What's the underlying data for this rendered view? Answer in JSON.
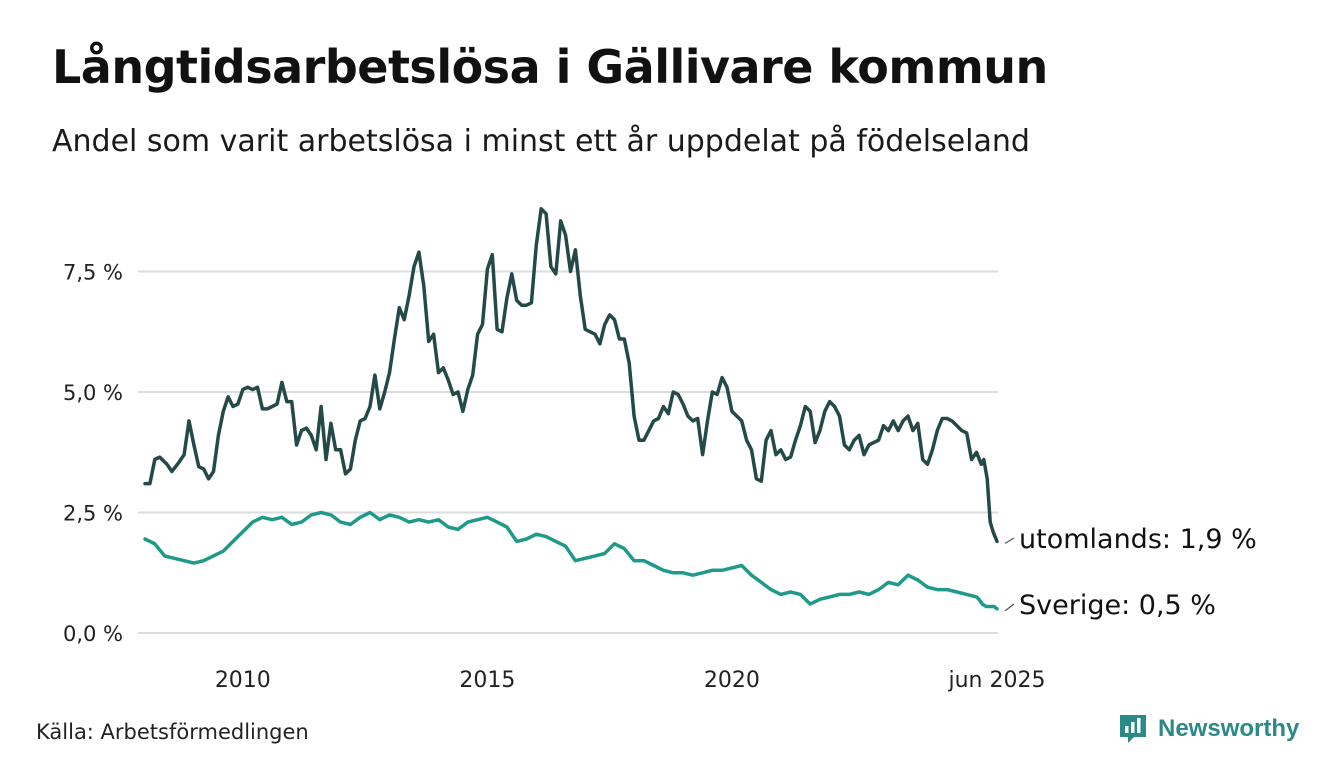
{
  "title": "Långtidsarbetslösa i Gällivare kommun",
  "subtitle": "Andel som varit arbetslösa i minst ett år uppdelat på födelseland",
  "source": "Källa: Arbetsförmedlingen",
  "brand": "Newsworthy",
  "colors": {
    "utomlands": "#234a46",
    "sverige": "#1f9a8a",
    "grid": "#dcdcdc",
    "brand": "#2a8a86"
  },
  "chart_data": {
    "type": "line",
    "x_unit": "decimal year",
    "xlim": [
      2008.0,
      2025.42
    ],
    "ylim": [
      0,
      8.8
    ],
    "yticks": [
      0,
      2.5,
      5.0,
      7.5
    ],
    "ytick_labels": [
      "0,0 %",
      "2,5 %",
      "5,0 %",
      "7,5 %"
    ],
    "xticks": [
      2010,
      2015,
      2020,
      2025.42
    ],
    "xtick_labels": [
      "2010",
      "2015",
      "2020",
      "jun 2025"
    ],
    "grid": true,
    "series": [
      {
        "key": "utomlands",
        "end_label": "utomlands: 1,9 %",
        "points": [
          [
            2008.0,
            3.1
          ],
          [
            2008.1,
            3.1
          ],
          [
            2008.2,
            3.6
          ],
          [
            2008.3,
            3.65
          ],
          [
            2008.45,
            3.5
          ],
          [
            2008.55,
            3.35
          ],
          [
            2008.7,
            3.55
          ],
          [
            2008.8,
            3.7
          ],
          [
            2008.9,
            4.4
          ],
          [
            2009.0,
            3.9
          ],
          [
            2009.1,
            3.45
          ],
          [
            2009.2,
            3.4
          ],
          [
            2009.3,
            3.2
          ],
          [
            2009.4,
            3.35
          ],
          [
            2009.5,
            4.1
          ],
          [
            2009.6,
            4.6
          ],
          [
            2009.7,
            4.9
          ],
          [
            2009.8,
            4.7
          ],
          [
            2009.9,
            4.75
          ],
          [
            2010.0,
            5.05
          ],
          [
            2010.1,
            5.1
          ],
          [
            2010.2,
            5.05
          ],
          [
            2010.3,
            5.1
          ],
          [
            2010.4,
            4.65
          ],
          [
            2010.5,
            4.65
          ],
          [
            2010.6,
            4.7
          ],
          [
            2010.7,
            4.75
          ],
          [
            2010.8,
            5.2
          ],
          [
            2010.9,
            4.8
          ],
          [
            2011.0,
            4.8
          ],
          [
            2011.1,
            3.9
          ],
          [
            2011.2,
            4.2
          ],
          [
            2011.3,
            4.25
          ],
          [
            2011.4,
            4.1
          ],
          [
            2011.5,
            3.8
          ],
          [
            2011.6,
            4.7
          ],
          [
            2011.7,
            3.6
          ],
          [
            2011.8,
            4.35
          ],
          [
            2011.9,
            3.8
          ],
          [
            2012.0,
            3.8
          ],
          [
            2012.1,
            3.3
          ],
          [
            2012.2,
            3.4
          ],
          [
            2012.3,
            4.0
          ],
          [
            2012.4,
            4.4
          ],
          [
            2012.5,
            4.45
          ],
          [
            2012.6,
            4.7
          ],
          [
            2012.7,
            5.35
          ],
          [
            2012.8,
            4.65
          ],
          [
            2012.9,
            5.0
          ],
          [
            2013.0,
            5.4
          ],
          [
            2013.1,
            6.1
          ],
          [
            2013.2,
            6.75
          ],
          [
            2013.3,
            6.5
          ],
          [
            2013.4,
            7.0
          ],
          [
            2013.5,
            7.6
          ],
          [
            2013.6,
            7.9
          ],
          [
            2013.7,
            7.2
          ],
          [
            2013.8,
            6.05
          ],
          [
            2013.9,
            6.2
          ],
          [
            2014.0,
            5.4
          ],
          [
            2014.1,
            5.5
          ],
          [
            2014.2,
            5.25
          ],
          [
            2014.3,
            4.95
          ],
          [
            2014.4,
            5.0
          ],
          [
            2014.5,
            4.6
          ],
          [
            2014.6,
            5.05
          ],
          [
            2014.7,
            5.35
          ],
          [
            2014.8,
            6.2
          ],
          [
            2014.9,
            6.4
          ],
          [
            2015.0,
            7.55
          ],
          [
            2015.1,
            7.85
          ],
          [
            2015.2,
            6.3
          ],
          [
            2015.3,
            6.25
          ],
          [
            2015.4,
            6.95
          ],
          [
            2015.5,
            7.45
          ],
          [
            2015.6,
            6.9
          ],
          [
            2015.7,
            6.8
          ],
          [
            2015.8,
            6.8
          ],
          [
            2015.9,
            6.85
          ],
          [
            2016.0,
            8.05
          ],
          [
            2016.1,
            8.8
          ],
          [
            2016.2,
            8.7
          ],
          [
            2016.3,
            7.6
          ],
          [
            2016.4,
            7.45
          ],
          [
            2016.5,
            8.55
          ],
          [
            2016.6,
            8.25
          ],
          [
            2016.7,
            7.5
          ],
          [
            2016.8,
            7.95
          ],
          [
            2016.9,
            7.0
          ],
          [
            2017.0,
            6.3
          ],
          [
            2017.1,
            6.25
          ],
          [
            2017.2,
            6.2
          ],
          [
            2017.3,
            6.0
          ],
          [
            2017.4,
            6.4
          ],
          [
            2017.5,
            6.6
          ],
          [
            2017.6,
            6.5
          ],
          [
            2017.7,
            6.1
          ],
          [
            2017.8,
            6.1
          ],
          [
            2017.9,
            5.6
          ],
          [
            2018.0,
            4.5
          ],
          [
            2018.1,
            4.0
          ],
          [
            2018.2,
            4.0
          ],
          [
            2018.3,
            4.2
          ],
          [
            2018.4,
            4.4
          ],
          [
            2018.5,
            4.45
          ],
          [
            2018.6,
            4.7
          ],
          [
            2018.7,
            4.55
          ],
          [
            2018.8,
            5.0
          ],
          [
            2018.9,
            4.95
          ],
          [
            2019.0,
            4.75
          ],
          [
            2019.1,
            4.5
          ],
          [
            2019.2,
            4.4
          ],
          [
            2019.3,
            4.45
          ],
          [
            2019.4,
            3.7
          ],
          [
            2019.5,
            4.4
          ],
          [
            2019.6,
            5.0
          ],
          [
            2019.7,
            4.95
          ],
          [
            2019.8,
            5.3
          ],
          [
            2019.9,
            5.1
          ],
          [
            2020.0,
            4.6
          ],
          [
            2020.1,
            4.5
          ],
          [
            2020.2,
            4.4
          ],
          [
            2020.3,
            4.0
          ],
          [
            2020.4,
            3.8
          ],
          [
            2020.5,
            3.2
          ],
          [
            2020.6,
            3.15
          ],
          [
            2020.7,
            4.0
          ],
          [
            2020.8,
            4.2
          ],
          [
            2020.9,
            3.7
          ],
          [
            2021.0,
            3.8
          ],
          [
            2021.1,
            3.6
          ],
          [
            2021.2,
            3.65
          ],
          [
            2021.3,
            4.0
          ],
          [
            2021.4,
            4.3
          ],
          [
            2021.5,
            4.7
          ],
          [
            2021.6,
            4.6
          ],
          [
            2021.7,
            3.95
          ],
          [
            2021.8,
            4.2
          ],
          [
            2021.9,
            4.6
          ],
          [
            2022.0,
            4.8
          ],
          [
            2022.1,
            4.7
          ],
          [
            2022.2,
            4.5
          ],
          [
            2022.3,
            3.9
          ],
          [
            2022.4,
            3.8
          ],
          [
            2022.5,
            4.0
          ],
          [
            2022.6,
            4.1
          ],
          [
            2022.7,
            3.7
          ],
          [
            2022.8,
            3.9
          ],
          [
            2022.9,
            3.95
          ],
          [
            2023.0,
            4.0
          ],
          [
            2023.1,
            4.3
          ],
          [
            2023.2,
            4.2
          ],
          [
            2023.3,
            4.4
          ],
          [
            2023.4,
            4.2
          ],
          [
            2023.5,
            4.4
          ],
          [
            2023.6,
            4.5
          ],
          [
            2023.7,
            4.2
          ],
          [
            2023.8,
            4.35
          ],
          [
            2023.9,
            3.6
          ],
          [
            2024.0,
            3.5
          ],
          [
            2024.1,
            3.8
          ],
          [
            2024.2,
            4.2
          ],
          [
            2024.3,
            4.45
          ],
          [
            2024.4,
            4.45
          ],
          [
            2024.5,
            4.4
          ],
          [
            2024.6,
            4.3
          ],
          [
            2024.7,
            4.2
          ],
          [
            2024.8,
            4.15
          ],
          [
            2024.9,
            3.6
          ],
          [
            2025.0,
            3.75
          ],
          [
            2025.1,
            3.5
          ],
          [
            2025.15,
            3.6
          ],
          [
            2025.22,
            3.2
          ],
          [
            2025.28,
            2.3
          ],
          [
            2025.34,
            2.1
          ],
          [
            2025.42,
            1.9
          ]
        ]
      },
      {
        "key": "sverige",
        "end_label": "Sverige: 0,5 %",
        "points": [
          [
            2008.0,
            1.95
          ],
          [
            2008.2,
            1.85
          ],
          [
            2008.4,
            1.6
          ],
          [
            2008.6,
            1.55
          ],
          [
            2008.8,
            1.5
          ],
          [
            2009.0,
            1.45
          ],
          [
            2009.2,
            1.5
          ],
          [
            2009.4,
            1.6
          ],
          [
            2009.6,
            1.7
          ],
          [
            2009.8,
            1.9
          ],
          [
            2010.0,
            2.1
          ],
          [
            2010.2,
            2.3
          ],
          [
            2010.4,
            2.4
          ],
          [
            2010.6,
            2.35
          ],
          [
            2010.8,
            2.4
          ],
          [
            2011.0,
            2.25
          ],
          [
            2011.2,
            2.3
          ],
          [
            2011.4,
            2.45
          ],
          [
            2011.6,
            2.5
          ],
          [
            2011.8,
            2.45
          ],
          [
            2012.0,
            2.3
          ],
          [
            2012.2,
            2.25
          ],
          [
            2012.4,
            2.4
          ],
          [
            2012.6,
            2.5
          ],
          [
            2012.8,
            2.35
          ],
          [
            2013.0,
            2.45
          ],
          [
            2013.2,
            2.4
          ],
          [
            2013.4,
            2.3
          ],
          [
            2013.6,
            2.35
          ],
          [
            2013.8,
            2.3
          ],
          [
            2014.0,
            2.35
          ],
          [
            2014.2,
            2.2
          ],
          [
            2014.4,
            2.15
          ],
          [
            2014.6,
            2.3
          ],
          [
            2014.8,
            2.35
          ],
          [
            2015.0,
            2.4
          ],
          [
            2015.2,
            2.3
          ],
          [
            2015.4,
            2.2
          ],
          [
            2015.6,
            1.9
          ],
          [
            2015.8,
            1.95
          ],
          [
            2016.0,
            2.05
          ],
          [
            2016.2,
            2.0
          ],
          [
            2016.4,
            1.9
          ],
          [
            2016.6,
            1.8
          ],
          [
            2016.8,
            1.5
          ],
          [
            2017.0,
            1.55
          ],
          [
            2017.2,
            1.6
          ],
          [
            2017.4,
            1.65
          ],
          [
            2017.6,
            1.85
          ],
          [
            2017.8,
            1.75
          ],
          [
            2018.0,
            1.5
          ],
          [
            2018.2,
            1.5
          ],
          [
            2018.4,
            1.4
          ],
          [
            2018.6,
            1.3
          ],
          [
            2018.8,
            1.25
          ],
          [
            2019.0,
            1.25
          ],
          [
            2019.2,
            1.2
          ],
          [
            2019.4,
            1.25
          ],
          [
            2019.6,
            1.3
          ],
          [
            2019.8,
            1.3
          ],
          [
            2020.0,
            1.35
          ],
          [
            2020.2,
            1.4
          ],
          [
            2020.4,
            1.2
          ],
          [
            2020.6,
            1.05
          ],
          [
            2020.8,
            0.9
          ],
          [
            2021.0,
            0.8
          ],
          [
            2021.2,
            0.85
          ],
          [
            2021.4,
            0.8
          ],
          [
            2021.6,
            0.6
          ],
          [
            2021.8,
            0.7
          ],
          [
            2022.0,
            0.75
          ],
          [
            2022.2,
            0.8
          ],
          [
            2022.4,
            0.8
          ],
          [
            2022.6,
            0.85
          ],
          [
            2022.8,
            0.8
          ],
          [
            2023.0,
            0.9
          ],
          [
            2023.2,
            1.05
          ],
          [
            2023.4,
            1.0
          ],
          [
            2023.6,
            1.2
          ],
          [
            2023.8,
            1.1
          ],
          [
            2024.0,
            0.95
          ],
          [
            2024.2,
            0.9
          ],
          [
            2024.4,
            0.9
          ],
          [
            2024.6,
            0.85
          ],
          [
            2024.8,
            0.8
          ],
          [
            2025.0,
            0.75
          ],
          [
            2025.05,
            0.7
          ],
          [
            2025.12,
            0.6
          ],
          [
            2025.2,
            0.55
          ],
          [
            2025.28,
            0.55
          ],
          [
            2025.36,
            0.55
          ],
          [
            2025.42,
            0.5
          ]
        ]
      }
    ]
  }
}
